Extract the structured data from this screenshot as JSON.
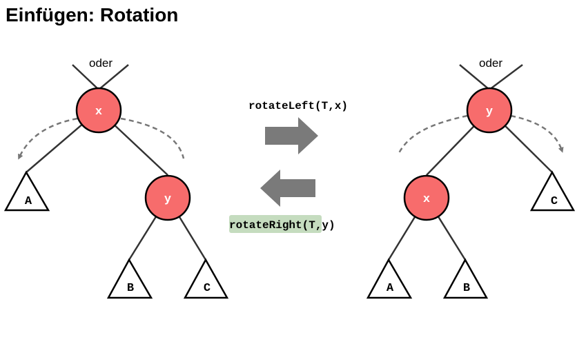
{
  "slide": {
    "title": "Einfügen: Rotation"
  },
  "colors": {
    "node_fill": "#f76c6c",
    "highlight": "#c5dcbf",
    "arrow": "#7a7a7a",
    "dashed": "#777777"
  },
  "left_tree": {
    "parent_label": "oder",
    "root": "x",
    "child": "y",
    "leaves": [
      "A",
      "B",
      "C"
    ]
  },
  "right_tree": {
    "parent_label": "oder",
    "root": "y",
    "child": "x",
    "leaves": [
      "A",
      "B",
      "C"
    ]
  },
  "operations": {
    "forward": {
      "name": "rotateLeft",
      "args": "(T,x)"
    },
    "backward": {
      "name": "rotateRight",
      "args": "(T,y)"
    }
  }
}
